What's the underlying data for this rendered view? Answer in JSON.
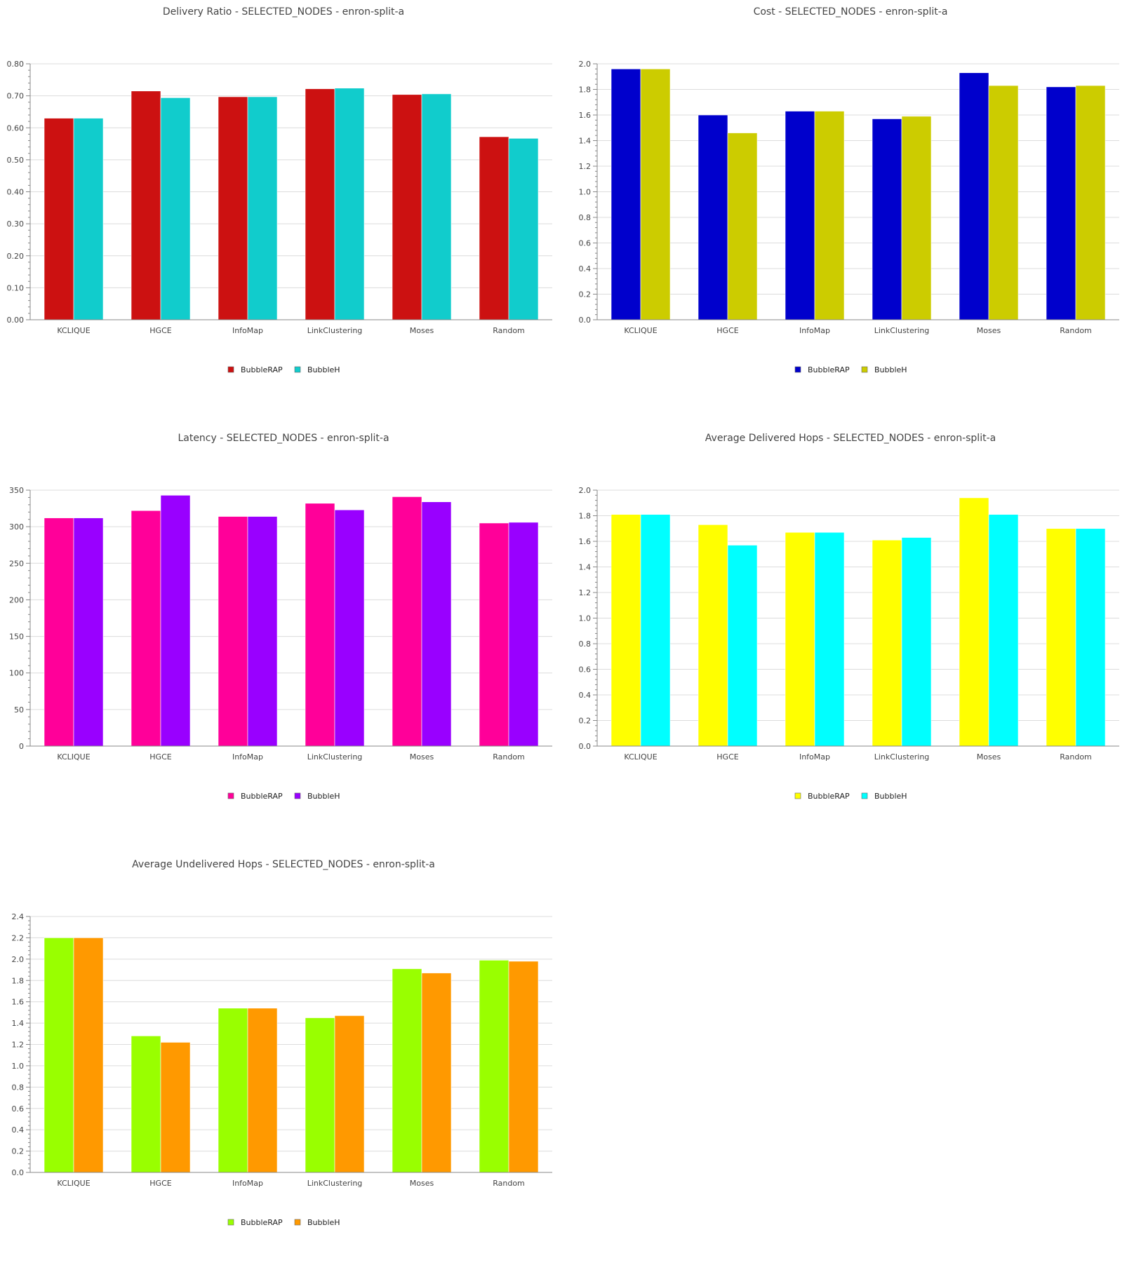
{
  "chart_data": [
    {
      "type": "bar",
      "title": "Delivery Ratio - SELECTED_NODES - enron-split-a",
      "xlabel": "",
      "ylabel": "",
      "categories": [
        "KCLIQUE",
        "HGCE",
        "InfoMap",
        "LinkClustering",
        "Moses",
        "Random"
      ],
      "series": [
        {
          "name": "BubbleRAP",
          "color": "#cc1111",
          "values": [
            0.63,
            0.715,
            0.697,
            0.722,
            0.704,
            0.572
          ]
        },
        {
          "name": "BubbleH",
          "color": "#11cccc",
          "values": [
            0.63,
            0.694,
            0.697,
            0.724,
            0.706,
            0.567
          ]
        }
      ],
      "ylim": [
        0,
        0.8
      ],
      "yticks": [
        0,
        0.1,
        0.2,
        0.3,
        0.4,
        0.5,
        0.6,
        0.7,
        0.8
      ],
      "ytick_labels": [
        "0.00",
        "0.10",
        "0.20",
        "0.30",
        "0.40",
        "0.50",
        "0.60",
        "0.70",
        "0.80"
      ],
      "grid": true,
      "legend": "bottom-center"
    },
    {
      "type": "bar",
      "title": "Cost - SELECTED_NODES - enron-split-a",
      "xlabel": "",
      "ylabel": "",
      "categories": [
        "KCLIQUE",
        "HGCE",
        "InfoMap",
        "LinkClustering",
        "Moses",
        "Random"
      ],
      "series": [
        {
          "name": "BubbleRAP",
          "color": "#0000cc",
          "values": [
            1.96,
            1.6,
            1.63,
            1.57,
            1.93,
            1.82
          ]
        },
        {
          "name": "BubbleH",
          "color": "#cccc00",
          "values": [
            1.96,
            1.46,
            1.63,
            1.59,
            1.83,
            1.83
          ]
        }
      ],
      "ylim": [
        0,
        2.0
      ],
      "yticks": [
        0,
        0.2,
        0.4,
        0.6,
        0.8,
        1.0,
        1.2,
        1.4,
        1.6,
        1.8,
        2.0
      ],
      "ytick_labels": [
        "0.0",
        "0.2",
        "0.4",
        "0.6",
        "0.8",
        "1.0",
        "1.2",
        "1.4",
        "1.6",
        "1.8",
        "2.0"
      ],
      "grid": true,
      "legend": "bottom-center"
    },
    {
      "type": "bar",
      "title": "Latency - SELECTED_NODES - enron-split-a",
      "xlabel": "",
      "ylabel": "",
      "categories": [
        "KCLIQUE",
        "HGCE",
        "InfoMap",
        "LinkClustering",
        "Moses",
        "Random"
      ],
      "series": [
        {
          "name": "BubbleRAP",
          "color": "#ff0099",
          "values": [
            312,
            322,
            314,
            332,
            341,
            305
          ]
        },
        {
          "name": "BubbleH",
          "color": "#9900ff",
          "values": [
            312,
            343,
            314,
            323,
            334,
            306
          ]
        }
      ],
      "ylim": [
        0,
        350
      ],
      "yticks": [
        0,
        50,
        100,
        150,
        200,
        250,
        300,
        350
      ],
      "ytick_labels": [
        "0",
        "50",
        "100",
        "150",
        "200",
        "250",
        "300",
        "350"
      ],
      "grid": true,
      "legend": "bottom-center"
    },
    {
      "type": "bar",
      "title": "Average Delivered Hops - SELECTED_NODES - enron-split-a",
      "xlabel": "",
      "ylabel": "",
      "categories": [
        "KCLIQUE",
        "HGCE",
        "InfoMap",
        "LinkClustering",
        "Moses",
        "Random"
      ],
      "series": [
        {
          "name": "BubbleRAP",
          "color": "#ffff00",
          "values": [
            1.81,
            1.73,
            1.67,
            1.61,
            1.94,
            1.7
          ]
        },
        {
          "name": "BubbleH",
          "color": "#00ffff",
          "values": [
            1.81,
            1.57,
            1.67,
            1.63,
            1.81,
            1.7
          ]
        }
      ],
      "ylim": [
        0,
        2.0
      ],
      "yticks": [
        0,
        0.2,
        0.4,
        0.6,
        0.8,
        1.0,
        1.2,
        1.4,
        1.6,
        1.8,
        2.0
      ],
      "ytick_labels": [
        "0.0",
        "0.2",
        "0.4",
        "0.6",
        "0.8",
        "1.0",
        "1.2",
        "1.4",
        "1.6",
        "1.8",
        "2.0"
      ],
      "grid": true,
      "legend": "bottom-center"
    },
    {
      "type": "bar",
      "title": "Average Undelivered Hops - SELECTED_NODES - enron-split-a",
      "xlabel": "",
      "ylabel": "",
      "categories": [
        "KCLIQUE",
        "HGCE",
        "InfoMap",
        "LinkClustering",
        "Moses",
        "Random"
      ],
      "series": [
        {
          "name": "BubbleRAP",
          "color": "#99ff00",
          "values": [
            2.2,
            1.28,
            1.54,
            1.45,
            1.91,
            1.99
          ]
        },
        {
          "name": "BubbleH",
          "color": "#ff9900",
          "values": [
            2.2,
            1.22,
            1.54,
            1.47,
            1.87,
            1.98
          ]
        }
      ],
      "ylim": [
        0,
        2.4
      ],
      "yticks": [
        0,
        0.2,
        0.4,
        0.6,
        0.8,
        1.0,
        1.2,
        1.4,
        1.6,
        1.8,
        2.0,
        2.2,
        2.4
      ],
      "ytick_labels": [
        "0.0",
        "0.2",
        "0.4",
        "0.6",
        "0.8",
        "1.0",
        "1.2",
        "1.4",
        "1.6",
        "1.8",
        "2.0",
        "2.2",
        "2.4"
      ],
      "grid": true,
      "legend": "bottom-center"
    }
  ]
}
